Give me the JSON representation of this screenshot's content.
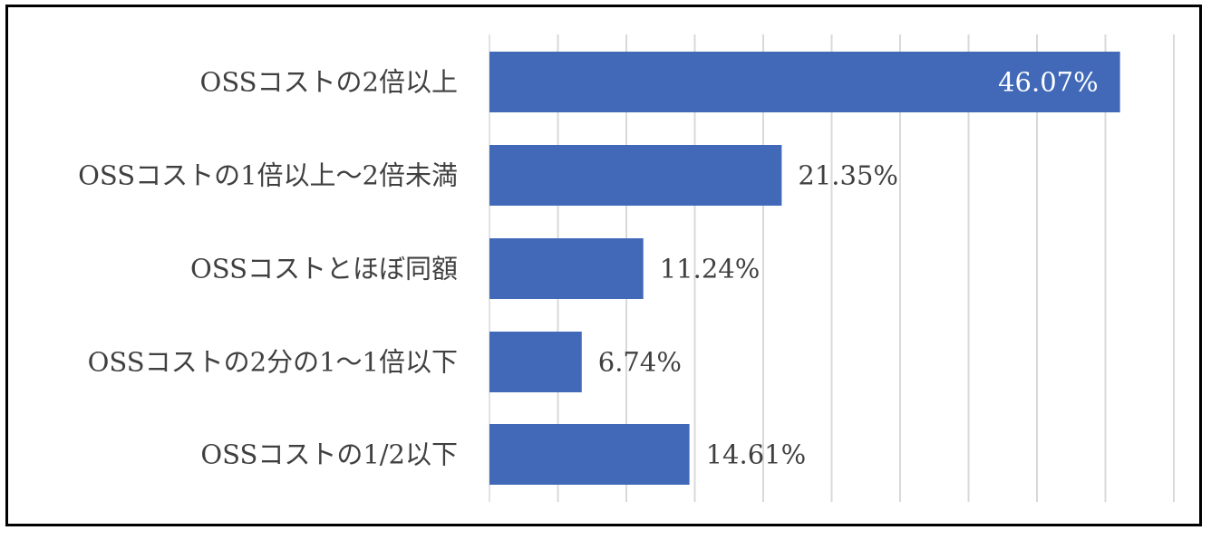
{
  "chart_data": {
    "type": "bar",
    "orientation": "horizontal",
    "categories": [
      "OSSコストの2倍以上",
      "OSSコストの1倍以上～2倍未満",
      "OSSコストとほぼ同額",
      "OSSコストの2分の1～1倍以下",
      "OSSコストの1/2以下"
    ],
    "values": [
      46.07,
      21.35,
      11.24,
      6.74,
      14.61
    ],
    "value_labels": [
      "46.07%",
      "21.35%",
      "11.24%",
      "6.74%",
      "14.61%"
    ],
    "xlim": [
      0,
      50
    ],
    "x_gridline_step": 5,
    "grid": true,
    "legend": "none",
    "title": "",
    "xlabel": "",
    "ylabel": "",
    "colors": {
      "bar": "#4169B8",
      "grid": "#d9d9d9",
      "label_text": "#404040",
      "inside_label_text": "#ffffff",
      "frame": "#000000"
    }
  }
}
